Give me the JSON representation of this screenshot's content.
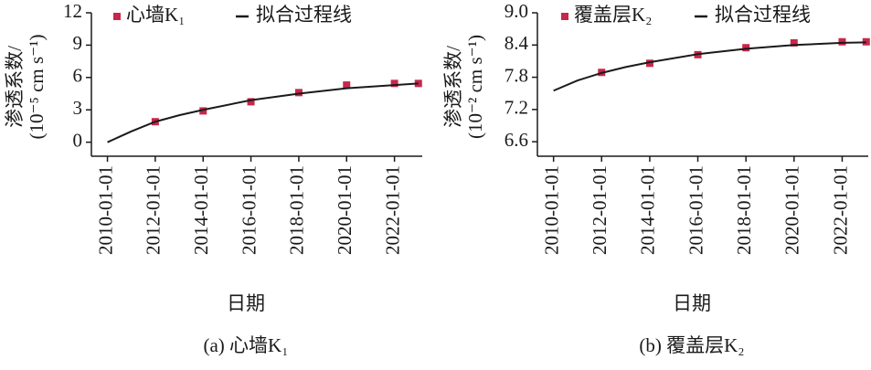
{
  "chart_data": [
    {
      "type": "scatter",
      "caption": "(a) 心墙K₁",
      "x_label": "日期",
      "y_label": [
        "渗透系数/",
        "(10⁻⁵ cm s⁻¹)"
      ],
      "xlim": [
        "2009-05-01",
        "2023-03-01"
      ],
      "ylim": [
        -1.3,
        12
      ],
      "xticks": [
        "2010-01-01",
        "2012-01-01",
        "2014-01-01",
        "2016-01-01",
        "2018-01-01",
        "2020-01-01",
        "2022-01-01"
      ],
      "yticks": [
        0,
        3,
        6,
        9,
        12
      ],
      "series": [
        {
          "name": "心墙K₁",
          "kind": "markers",
          "color": "#c8264b",
          "x": [
            "2012-01-01",
            "2014-01-01",
            "2016-01-01",
            "2018-01-01",
            "2020-01-01",
            "2022-01-01",
            "2023-01-01"
          ],
          "values": [
            1.9,
            2.9,
            3.75,
            4.6,
            5.3,
            5.45,
            5.45
          ]
        },
        {
          "name": "拟合过程线",
          "kind": "line",
          "color": "#1a1a1a",
          "x": [
            "2010-01-01",
            "2011-01-01",
            "2012-01-01",
            "2013-01-01",
            "2014-01-01",
            "2016-01-01",
            "2018-01-01",
            "2020-01-01",
            "2022-01-01",
            "2023-01-01"
          ],
          "values": [
            0,
            1.0,
            1.9,
            2.5,
            3.0,
            3.9,
            4.5,
            5.0,
            5.3,
            5.45
          ]
        }
      ]
    },
    {
      "type": "scatter",
      "caption": "(b) 覆盖层K₂",
      "x_label": "日期",
      "y_label": [
        "渗透系数/",
        "(10⁻² cm s⁻¹)"
      ],
      "xlim": [
        "2009-05-01",
        "2023-02-01"
      ],
      "ylim": [
        6.33,
        9.0
      ],
      "xticks": [
        "2010-01-01",
        "2012-01-01",
        "2014-01-01",
        "2016-01-01",
        "2018-01-01",
        "2020-01-01",
        "2022-01-01"
      ],
      "yticks": [
        {
          "value": 6.6,
          "label": "6.6"
        },
        {
          "value": 7.2,
          "label": "7.2"
        },
        {
          "value": 7.8,
          "label": "7.8"
        },
        {
          "value": 8.4,
          "label": "8.4"
        },
        {
          "value": 9.0,
          "label": "9.0"
        }
      ],
      "series": [
        {
          "name": "覆盖层K₂",
          "kind": "markers",
          "color": "#c8264b",
          "x": [
            "2012-01-01",
            "2014-01-01",
            "2016-01-01",
            "2018-01-01",
            "2020-01-01",
            "2022-01-01",
            "2023-01-01"
          ],
          "values": [
            7.89,
            8.06,
            8.22,
            8.35,
            8.44,
            8.46,
            8.46
          ]
        },
        {
          "name": "拟合过程线",
          "kind": "line",
          "color": "#1a1a1a",
          "x": [
            "2010-01-01",
            "2011-01-01",
            "2012-01-01",
            "2013-01-01",
            "2014-01-01",
            "2016-01-01",
            "2018-01-01",
            "2020-01-01",
            "2022-01-01",
            "2023-01-01"
          ],
          "values": [
            7.55,
            7.74,
            7.88,
            7.99,
            8.08,
            8.23,
            8.33,
            8.4,
            8.44,
            8.45
          ]
        }
      ]
    }
  ]
}
